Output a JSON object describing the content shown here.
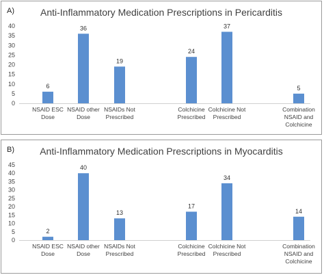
{
  "chart_data": [
    {
      "type": "bar",
      "panel_label": "A)",
      "title": "Anti-Inflammatory Medication Prescriptions in Pericarditis",
      "categories": [
        [
          "NSAID ESC",
          "Dose"
        ],
        [
          "NSAID other",
          "Dose"
        ],
        [
          "NSAIDs Not",
          "Prescribed"
        ],
        [
          "Colchicine",
          "Prescribed"
        ],
        [
          "Colchicine Not",
          "Prescribed"
        ],
        [
          "Combination",
          "NSAID and",
          "Colchicine"
        ]
      ],
      "slots": [
        0,
        1,
        2,
        4,
        5,
        7
      ],
      "values": [
        6,
        36,
        19,
        24,
        37,
        5
      ],
      "ylim": [
        0,
        40
      ],
      "yticks": [
        0,
        5,
        10,
        15,
        20,
        25,
        30,
        35,
        40
      ],
      "bar_color": "#5b8fd0",
      "grid": false
    },
    {
      "type": "bar",
      "panel_label": "B)",
      "title": "Anti-Inflammatory Medication Prescriptions in Myocarditis",
      "categories": [
        [
          "NSAID ESC",
          "Dose"
        ],
        [
          "NSAID other",
          "Dose"
        ],
        [
          "NSAIDs Not",
          "Prescribed"
        ],
        [
          "Colchicine",
          "Prescribed"
        ],
        [
          "Colchicine Not",
          "Prescribed"
        ],
        [
          "Combination",
          "NSAID and",
          "Colchicine"
        ]
      ],
      "slots": [
        0,
        1,
        2,
        4,
        5,
        7
      ],
      "values": [
        2,
        40,
        13,
        17,
        34,
        14
      ],
      "ylim": [
        0,
        45
      ],
      "yticks": [
        0,
        5,
        10,
        15,
        20,
        25,
        30,
        35,
        40,
        45
      ],
      "bar_color": "#5b8fd0",
      "grid": false
    }
  ]
}
